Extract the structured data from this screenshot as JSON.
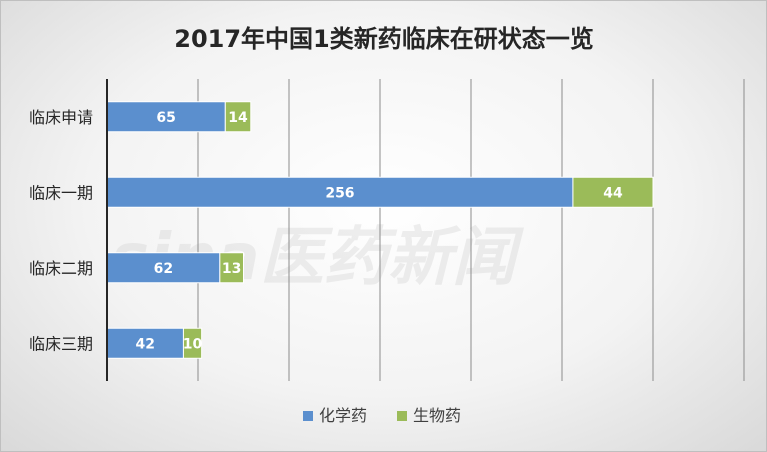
{
  "chart_data": {
    "type": "bar",
    "orientation": "horizontal",
    "stacked": true,
    "title": "2017年中国1类新药临床在研状态一览",
    "categories": [
      "临床申请",
      "临床一期",
      "临床二期",
      "临床三期"
    ],
    "series": [
      {
        "name": "化学药",
        "values": [
          65,
          256,
          62,
          42
        ],
        "color": "#5b8fce"
      },
      {
        "name": "生物药",
        "values": [
          14,
          44,
          13,
          10
        ],
        "color": "#9bbb59"
      }
    ],
    "xlim": [
      0,
      350
    ],
    "x_gridline_step": 50,
    "grid": true,
    "show_tick_labels": false,
    "data_labels": true,
    "legend_position": "bottom"
  },
  "watermark": {
    "text": "sina医药新闻"
  }
}
